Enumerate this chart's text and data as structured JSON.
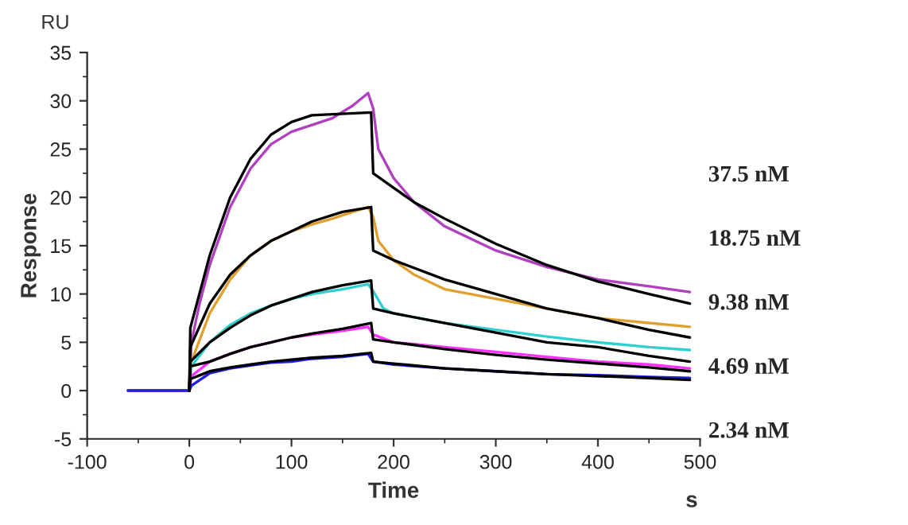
{
  "chart_data": {
    "type": "line",
    "xlabel": "Time",
    "ylabel": "Response",
    "xlim": [
      -100,
      500
    ],
    "xticks": [
      -100,
      0,
      100,
      200,
      300,
      400,
      500
    ],
    "ylim": [
      -5,
      35
    ],
    "yticks": [
      -5,
      0,
      5,
      10,
      15,
      20,
      25,
      30,
      35
    ],
    "grid": false,
    "marker": "none",
    "line_style": "solid",
    "annotations": [
      "RU",
      "s",
      "37.5 nM",
      "18.75 nM",
      "9.38 nM",
      "4.69 nM",
      "2.34 nM"
    ],
    "series": [
      {
        "color": "#b040c0",
        "x": [
          -60,
          0,
          2,
          10,
          20,
          40,
          60,
          80,
          100,
          120,
          140,
          160,
          175,
          180,
          185,
          200,
          220,
          250,
          300,
          350,
          400,
          450,
          490
        ],
        "values": [
          0,
          0,
          5,
          9,
          13,
          19,
          23,
          25.5,
          26.8,
          27.5,
          28.2,
          29.5,
          30.8,
          29.2,
          25,
          22,
          19.5,
          17,
          14.5,
          12.8,
          11.5,
          10.8,
          10.2
        ]
      },
      {
        "color": "#e0a030",
        "x": [
          -60,
          0,
          2,
          20,
          40,
          60,
          80,
          100,
          120,
          140,
          160,
          175,
          180,
          185,
          200,
          220,
          250,
          300,
          350,
          400,
          450,
          490
        ],
        "values": [
          0,
          0,
          3,
          8,
          11.5,
          14,
          15.5,
          16.5,
          17.2,
          17.8,
          18.5,
          19,
          18,
          15.5,
          13.5,
          12,
          10.5,
          9.5,
          8.5,
          7.5,
          7,
          6.6
        ]
      },
      {
        "color": "#30d0d0",
        "x": [
          -60,
          0,
          2,
          20,
          40,
          60,
          80,
          100,
          120,
          150,
          175,
          180,
          190,
          200,
          250,
          300,
          350,
          400,
          450,
          490
        ],
        "values": [
          0,
          0,
          2.5,
          5,
          6.8,
          8,
          8.8,
          9.5,
          10,
          10.5,
          11,
          10.3,
          8.5,
          8,
          7,
          6.3,
          5.6,
          5,
          4.5,
          4.2
        ]
      },
      {
        "color": "#ff30ff",
        "x": [
          -60,
          0,
          2,
          20,
          40,
          60,
          80,
          100,
          120,
          150,
          175,
          180,
          200,
          250,
          300,
          350,
          400,
          450,
          490
        ],
        "values": [
          0,
          0,
          1.5,
          3,
          3.8,
          4.5,
          5,
          5.5,
          5.8,
          6.2,
          6.6,
          5.8,
          5,
          4.5,
          4,
          3.5,
          3,
          2.7,
          2.3
        ]
      },
      {
        "color": "#2020e0",
        "x": [
          -60,
          0,
          2,
          20,
          40,
          60,
          80,
          100,
          120,
          150,
          175,
          180,
          200,
          250,
          300,
          350,
          400,
          450,
          490
        ],
        "values": [
          0,
          0,
          0.5,
          1.8,
          2.3,
          2.6,
          2.9,
          3,
          3.3,
          3.5,
          3.8,
          3,
          2.7,
          2.3,
          2,
          1.7,
          1.6,
          1.4,
          1.3
        ]
      },
      {
        "color": "#000000",
        "x": [
          0,
          1,
          20,
          40,
          60,
          80,
          100,
          120,
          178,
          180,
          200,
          220,
          250,
          300,
          350,
          400,
          450,
          490
        ],
        "values": [
          0,
          6.5,
          14,
          20,
          24,
          26.5,
          27.8,
          28.5,
          28.8,
          22.5,
          21,
          19.5,
          17.8,
          15.2,
          13,
          11.3,
          10,
          9
        ]
      },
      {
        "color": "#000000",
        "x": [
          0,
          1,
          20,
          40,
          60,
          80,
          100,
          120,
          150,
          178,
          180,
          200,
          250,
          300,
          350,
          400,
          450,
          490
        ],
        "values": [
          0,
          4.5,
          9,
          12,
          14,
          15.5,
          16.5,
          17.5,
          18.5,
          19,
          14.5,
          13.5,
          11.5,
          10,
          8.5,
          7.5,
          6.3,
          5.5
        ]
      },
      {
        "color": "#000000",
        "x": [
          0,
          1,
          20,
          40,
          60,
          80,
          100,
          120,
          150,
          178,
          180,
          200,
          250,
          300,
          350,
          400,
          450,
          490
        ],
        "values": [
          0,
          3,
          5,
          6.5,
          7.8,
          8.8,
          9.5,
          10.2,
          10.9,
          11.4,
          8.5,
          8,
          7,
          6,
          5,
          4.5,
          3.6,
          3
        ]
      },
      {
        "color": "#000000",
        "x": [
          0,
          1,
          20,
          40,
          60,
          80,
          100,
          120,
          150,
          178,
          180,
          200,
          250,
          300,
          350,
          400,
          450,
          490
        ],
        "values": [
          0,
          2.5,
          3,
          3.8,
          4.5,
          5,
          5.5,
          5.9,
          6.4,
          7,
          5.3,
          5,
          4.3,
          3.7,
          3.2,
          2.8,
          2.4,
          2
        ]
      },
      {
        "color": "#000000",
        "x": [
          0,
          1,
          20,
          40,
          60,
          80,
          100,
          120,
          150,
          178,
          180,
          200,
          250,
          300,
          350,
          400,
          450,
          490
        ],
        "values": [
          0,
          1.2,
          2,
          2.4,
          2.7,
          3,
          3.2,
          3.4,
          3.6,
          3.9,
          3,
          2.8,
          2.3,
          2,
          1.7,
          1.5,
          1.3,
          1.1
        ]
      }
    ]
  }
}
